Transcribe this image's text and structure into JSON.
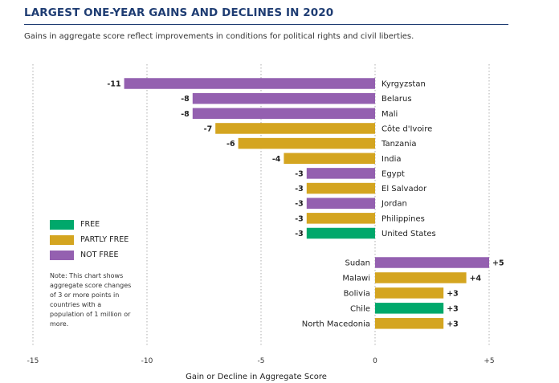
{
  "colors": {
    "free": "#00a86b",
    "partly_free": "#d4a520",
    "not_free": "#9460b0",
    "title": "#1f3d73"
  },
  "note": "Note: This chart shows aggregate score changes of 3 or more points in countries with a population of 1 million or more.",
  "legend": [
    {
      "label": "FREE",
      "status": "free"
    },
    {
      "label": "PARTLY FREE",
      "status": "partly_free"
    },
    {
      "label": "NOT FREE",
      "status": "not_free"
    }
  ],
  "chart_data": {
    "type": "bar",
    "orientation": "horizontal",
    "title": "LARGEST ONE-YEAR GAINS AND DECLINES IN 2020",
    "subtitle": "Gains in aggregate score reflect improvements in conditions for political rights and civil liberties.",
    "xlabel": "Gain or Decline in Aggregate Score",
    "xlim": [
      -15,
      5
    ],
    "xticks": [
      -15,
      -10,
      -5,
      0,
      5
    ],
    "xtick_labels": [
      "-15",
      "-10",
      "-5",
      "0",
      "+5"
    ],
    "grid": "vertical dotted",
    "declines": [
      {
        "country": "Kyrgyzstan",
        "value": -11,
        "label": "-11",
        "status": "not_free"
      },
      {
        "country": "Belarus",
        "value": -8,
        "label": "-8",
        "status": "not_free"
      },
      {
        "country": "Mali",
        "value": -8,
        "label": "-8",
        "status": "not_free"
      },
      {
        "country": "Côte d'Ivoire",
        "value": -7,
        "label": "-7",
        "status": "partly_free"
      },
      {
        "country": "Tanzania",
        "value": -6,
        "label": "-6",
        "status": "partly_free"
      },
      {
        "country": "India",
        "value": -4,
        "label": "-4",
        "status": "partly_free"
      },
      {
        "country": "Egypt",
        "value": -3,
        "label": "-3",
        "status": "not_free"
      },
      {
        "country": "El Salvador",
        "value": -3,
        "label": "-3",
        "status": "partly_free"
      },
      {
        "country": "Jordan",
        "value": -3,
        "label": "-3",
        "status": "not_free"
      },
      {
        "country": "Philippines",
        "value": -3,
        "label": "-3",
        "status": "partly_free"
      },
      {
        "country": "United States",
        "value": -3,
        "label": "-3",
        "status": "free"
      }
    ],
    "gains": [
      {
        "country": "Sudan",
        "value": 5,
        "label": "+5",
        "status": "not_free"
      },
      {
        "country": "Malawi",
        "value": 4,
        "label": "+4",
        "status": "partly_free"
      },
      {
        "country": "Bolivia",
        "value": 3,
        "label": "+3",
        "status": "partly_free"
      },
      {
        "country": "Chile",
        "value": 3,
        "label": "+3",
        "status": "free"
      },
      {
        "country": "North Macedonia",
        "value": 3,
        "label": "+3",
        "status": "partly_free"
      }
    ]
  }
}
